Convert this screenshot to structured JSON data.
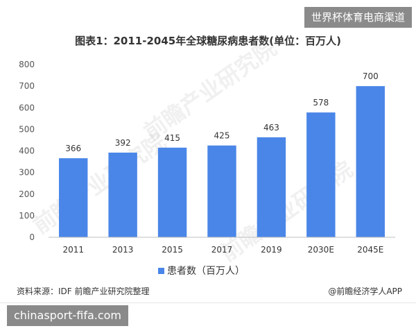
{
  "site_badge": "世界杯体育电商渠道",
  "footer_url": "chinasport-fifa.com",
  "watermark": "前瞻产业研究院",
  "source": "资料来源：IDF 前瞻产业研究院整理",
  "brand": "@前瞻经济学人APP",
  "colors": {
    "bar": "#4a86e8",
    "grid": "#e0e0e0",
    "axis": "#bfbfbf"
  },
  "chart_data": {
    "type": "bar",
    "title": "图表1：2011-2045年全球糖尿病患者数(单位：百万人)",
    "categories": [
      "2011",
      "2013",
      "2015",
      "2017",
      "2019",
      "2030E",
      "2045E"
    ],
    "series": [
      {
        "name": "患者数（百万人）",
        "values": [
          366,
          392,
          415,
          425,
          463,
          578,
          700
        ]
      }
    ],
    "ylim": [
      0,
      800
    ],
    "yticks": [
      0,
      100,
      200,
      300,
      400,
      500,
      600,
      700,
      800
    ],
    "grid": false,
    "legend_position": "bottom-center"
  }
}
